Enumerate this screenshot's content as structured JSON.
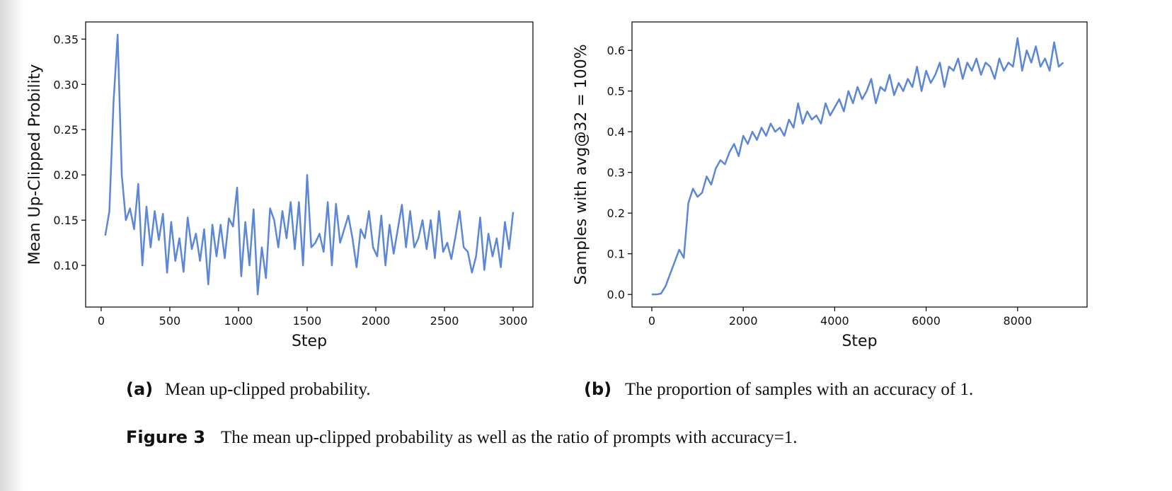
{
  "chart_data": [
    {
      "type": "line",
      "xlabel": "Step",
      "ylabel": "Mean Up-Clipped Probility",
      "x": [
        30,
        60,
        90,
        120,
        150,
        180,
        210,
        240,
        270,
        300,
        330,
        360,
        390,
        420,
        450,
        480,
        510,
        540,
        570,
        600,
        630,
        660,
        690,
        720,
        750,
        780,
        810,
        840,
        870,
        900,
        930,
        960,
        990,
        1020,
        1050,
        1080,
        1110,
        1140,
        1170,
        1200,
        1230,
        1260,
        1290,
        1320,
        1350,
        1380,
        1410,
        1440,
        1470,
        1500,
        1530,
        1560,
        1590,
        1620,
        1650,
        1680,
        1710,
        1740,
        1770,
        1800,
        1830,
        1860,
        1890,
        1920,
        1950,
        1980,
        2010,
        2040,
        2070,
        2100,
        2130,
        2160,
        2190,
        2220,
        2250,
        2280,
        2310,
        2340,
        2370,
        2400,
        2430,
        2460,
        2490,
        2520,
        2550,
        2580,
        2610,
        2640,
        2670,
        2700,
        2730,
        2760,
        2790,
        2820,
        2850,
        2880,
        2910,
        2940,
        2970,
        3000
      ],
      "series": [
        {
          "color": "#5b87d6",
          "values": [
            0.133,
            0.16,
            0.28,
            0.355,
            0.2,
            0.15,
            0.163,
            0.14,
            0.19,
            0.1,
            0.165,
            0.12,
            0.16,
            0.128,
            0.157,
            0.092,
            0.148,
            0.105,
            0.13,
            0.093,
            0.153,
            0.118,
            0.135,
            0.105,
            0.14,
            0.079,
            0.145,
            0.11,
            0.145,
            0.108,
            0.152,
            0.143,
            0.186,
            0.088,
            0.148,
            0.1,
            0.162,
            0.068,
            0.12,
            0.086,
            0.163,
            0.15,
            0.12,
            0.16,
            0.13,
            0.17,
            0.118,
            0.17,
            0.1,
            0.2,
            0.12,
            0.125,
            0.135,
            0.115,
            0.17,
            0.1,
            0.168,
            0.125,
            0.14,
            0.155,
            0.13,
            0.098,
            0.14,
            0.13,
            0.16,
            0.12,
            0.11,
            0.155,
            0.1,
            0.145,
            0.113,
            0.14,
            0.167,
            0.12,
            0.16,
            0.12,
            0.13,
            0.15,
            0.118,
            0.15,
            0.108,
            0.16,
            0.115,
            0.125,
            0.107,
            0.132,
            0.16,
            0.12,
            0.115,
            0.092,
            0.11,
            0.153,
            0.095,
            0.135,
            0.11,
            0.13,
            0.098,
            0.148,
            0.118,
            0.159
          ]
        }
      ],
      "xlim": [
        -113,
        3144
      ],
      "xticks": [
        0,
        500,
        1000,
        1500,
        2000,
        2500,
        3000
      ],
      "ylim": [
        0.054,
        0.369
      ],
      "yticks": [
        {
          "value": 0.1,
          "label": "0.10"
        },
        0.15,
        {
          "value": 0.2,
          "label": "0.20"
        },
        0.25,
        {
          "value": 0.3,
          "label": "0.30"
        },
        0.35
      ]
    },
    {
      "type": "line",
      "xlabel": "Step",
      "ylabel": "Samples with avg@32 = 100%",
      "x": [
        0,
        100,
        200,
        300,
        400,
        500,
        600,
        700,
        800,
        900,
        1000,
        1100,
        1200,
        1300,
        1400,
        1500,
        1600,
        1700,
        1800,
        1900,
        2000,
        2100,
        2200,
        2300,
        2400,
        2500,
        2600,
        2700,
        2800,
        2900,
        3000,
        3100,
        3200,
        3300,
        3400,
        3500,
        3600,
        3700,
        3800,
        3900,
        4000,
        4100,
        4200,
        4300,
        4400,
        4500,
        4600,
        4700,
        4800,
        4900,
        5000,
        5100,
        5200,
        5300,
        5400,
        5500,
        5600,
        5700,
        5800,
        5900,
        6000,
        6100,
        6200,
        6300,
        6400,
        6500,
        6600,
        6700,
        6800,
        6900,
        7000,
        7100,
        7200,
        7300,
        7400,
        7500,
        7600,
        7700,
        7800,
        7900,
        8000,
        8100,
        8200,
        8300,
        8400,
        8500,
        8600,
        8700,
        8800,
        8900,
        9000
      ],
      "series": [
        {
          "color": "#5b87d6",
          "values": [
            0,
            0,
            0.002,
            0.02,
            0.05,
            0.08,
            0.11,
            0.09,
            0.225,
            0.26,
            0.24,
            0.25,
            0.29,
            0.27,
            0.31,
            0.33,
            0.32,
            0.35,
            0.37,
            0.34,
            0.39,
            0.37,
            0.4,
            0.38,
            0.41,
            0.39,
            0.42,
            0.4,
            0.41,
            0.39,
            0.43,
            0.41,
            0.47,
            0.42,
            0.45,
            0.43,
            0.44,
            0.42,
            0.47,
            0.44,
            0.46,
            0.48,
            0.45,
            0.5,
            0.47,
            0.51,
            0.48,
            0.5,
            0.53,
            0.47,
            0.51,
            0.5,
            0.54,
            0.49,
            0.52,
            0.5,
            0.53,
            0.51,
            0.56,
            0.5,
            0.55,
            0.52,
            0.54,
            0.57,
            0.51,
            0.56,
            0.55,
            0.58,
            0.53,
            0.57,
            0.55,
            0.58,
            0.54,
            0.57,
            0.56,
            0.53,
            0.58,
            0.55,
            0.57,
            0.56,
            0.63,
            0.55,
            0.6,
            0.57,
            0.61,
            0.56,
            0.58,
            0.55,
            0.62,
            0.56,
            0.57
          ]
        }
      ],
      "xlim": [
        -433,
        9520
      ],
      "xticks": [
        0,
        2000,
        4000,
        6000,
        8000
      ],
      "ylim": [
        -0.031,
        0.67
      ],
      "yticks": [
        {
          "value": 0,
          "label": "0.0"
        },
        0.1,
        0.2,
        0.3,
        0.4,
        0.5,
        0.6
      ]
    }
  ],
  "subcaptions": [
    {
      "label": "(a)",
      "text": "Mean up-clipped probability."
    },
    {
      "label": "(b)",
      "text": "The proportion of samples with an accuracy of 1."
    }
  ],
  "figure_caption": {
    "label": "Figure 3",
    "text": "The mean up-clipped probability as well as the ratio of prompts with accuracy=1."
  }
}
